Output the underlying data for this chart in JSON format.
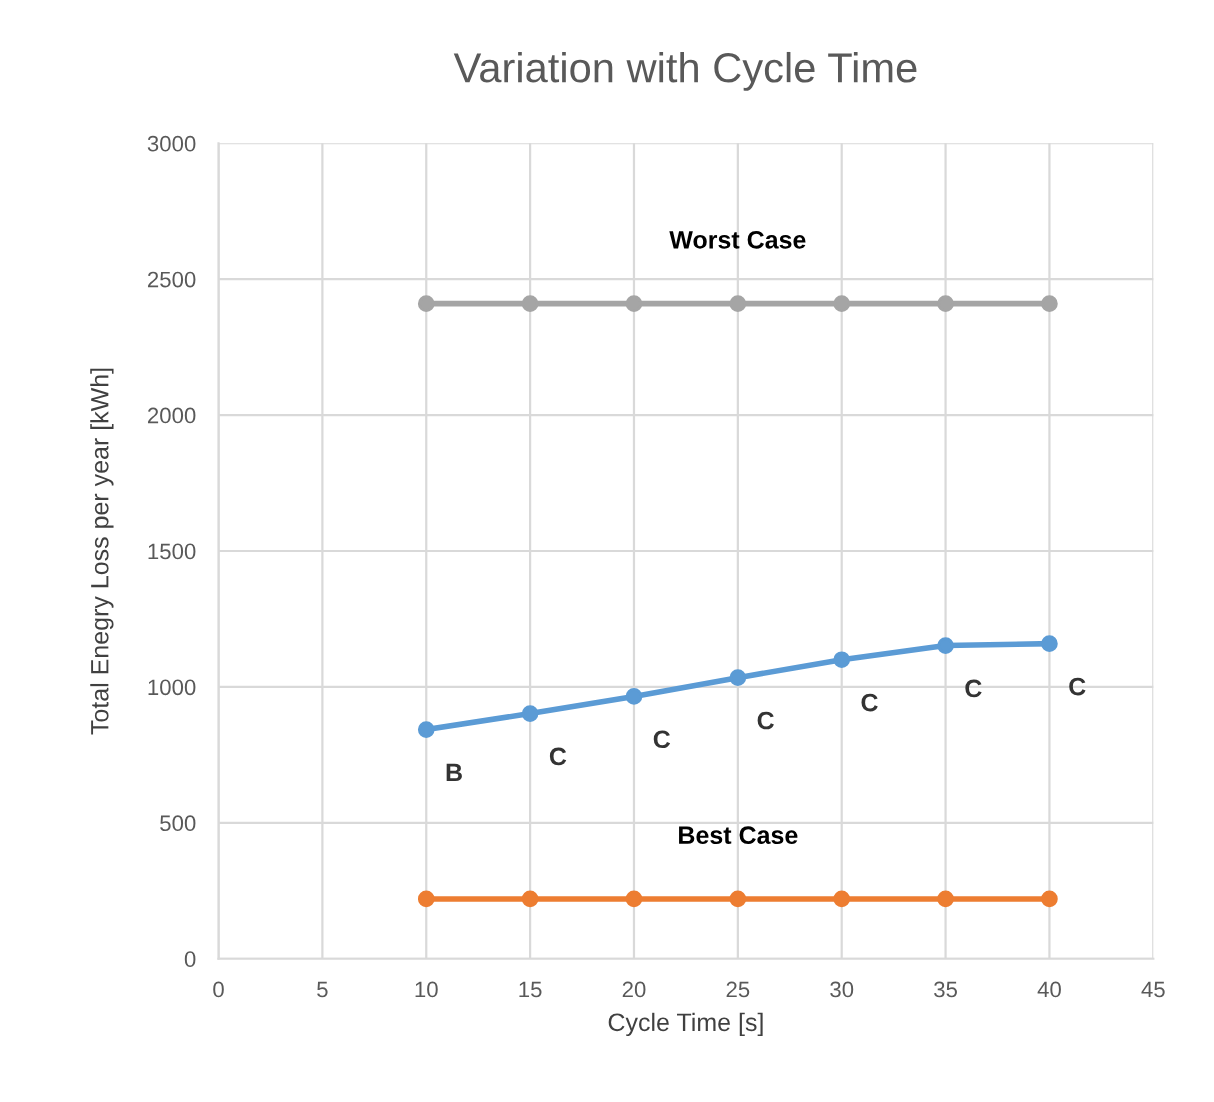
{
  "chart_data": {
    "type": "line",
    "title": "Variation with Cycle Time",
    "xlabel": "Cycle Time [s]",
    "ylabel": "Total Enegry Loss per year [kWh]",
    "x": [
      10,
      15,
      20,
      25,
      30,
      35,
      40
    ],
    "series": [
      {
        "color": "#a5a5a5",
        "values": [
          2410,
          2410,
          2410,
          2410,
          2410,
          2410,
          2410
        ]
      },
      {
        "color": "#5b9bd5",
        "values": [
          843,
          902,
          965,
          1034,
          1100,
          1152,
          1159
        ]
      },
      {
        "color": "#ed7d31",
        "values": [
          220,
          220,
          220,
          220,
          220,
          220,
          220
        ]
      }
    ],
    "annotations": [
      {
        "text": "Worst Case",
        "x": 25,
        "y": 2410
      },
      {
        "text": "Best Case",
        "x": 25,
        "y": 220
      },
      {
        "text": "B",
        "x": 10,
        "y": 843
      },
      {
        "text": "C",
        "x": 15,
        "y": 902
      },
      {
        "text": "C",
        "x": 20,
        "y": 965
      },
      {
        "text": "C",
        "x": 25,
        "y": 1034
      },
      {
        "text": "C",
        "x": 30,
        "y": 1100
      },
      {
        "text": "C",
        "x": 35,
        "y": 1152
      },
      {
        "text": "C",
        "x": 40,
        "y": 1159
      }
    ],
    "xlim": [
      0,
      45
    ],
    "xticks": [
      0,
      5,
      10,
      15,
      20,
      25,
      30,
      35,
      40,
      45
    ],
    "ylim": [
      0,
      3000
    ],
    "yticks": [
      0,
      500,
      1000,
      1500,
      2000,
      2500,
      3000
    ],
    "grid": true,
    "marker": "circle",
    "line_style": "solid"
  }
}
